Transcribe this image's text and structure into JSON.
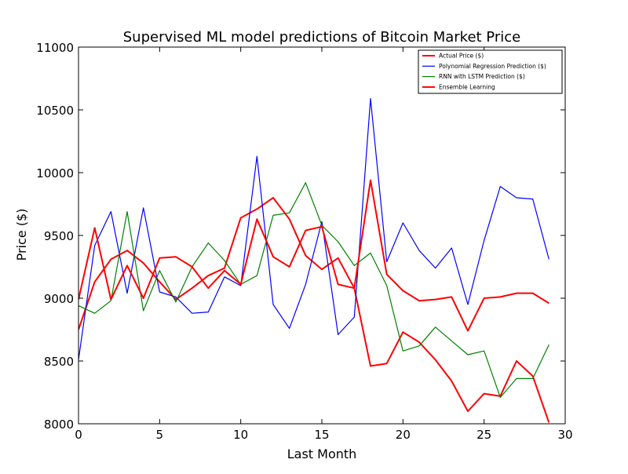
{
  "chart_data": {
    "type": "line",
    "title": "Supervised ML model predictions of Bitcoin Market Price",
    "xlabel": "Last Month",
    "ylabel": "Price ($)",
    "xlim": [
      0,
      30
    ],
    "ylim": [
      8000,
      11000
    ],
    "xticks": [
      0,
      5,
      10,
      15,
      20,
      25,
      30
    ],
    "yticks": [
      8000,
      8500,
      9000,
      9500,
      10000,
      10500,
      11000
    ],
    "grid": false,
    "legend_position": "top-right",
    "x": [
      0,
      1,
      2,
      3,
      4,
      5,
      6,
      7,
      8,
      9,
      10,
      11,
      12,
      13,
      14,
      15,
      16,
      17,
      18,
      19,
      20,
      21,
      22,
      23,
      24,
      25,
      26,
      27,
      28,
      29
    ],
    "series": [
      {
        "name": "Actual Price ($)",
        "color": "#ff0000",
        "values": [
          8750,
          9130,
          9310,
          9380,
          9280,
          9130,
          8990,
          9080,
          9180,
          9240,
          9640,
          9710,
          9800,
          9630,
          9340,
          9230,
          9320,
          9080,
          8460,
          8480,
          8730,
          8650,
          8510,
          8340,
          8100,
          8240,
          8220,
          8500,
          8380,
          8010
        ]
      },
      {
        "name": "Polynomial Regression Prediction ($)",
        "color": "#0000ff",
        "values": [
          8510,
          9420,
          9690,
          9040,
          9720,
          9050,
          9010,
          8880,
          8890,
          9170,
          9100,
          10130,
          8950,
          8760,
          9110,
          9610,
          8710,
          8850,
          10590,
          9290,
          9600,
          9380,
          9240,
          9400,
          8950,
          9460,
          9890,
          9800,
          9790,
          9310
        ]
      },
      {
        "name": "RNN with LSTM Prediction ($)",
        "color": "#008000",
        "values": [
          8940,
          8880,
          8980,
          9690,
          8900,
          9220,
          8970,
          9250,
          9440,
          9300,
          9110,
          9180,
          9660,
          9680,
          9920,
          9580,
          9450,
          9260,
          9360,
          9100,
          8580,
          8620,
          8770,
          8660,
          8550,
          8580,
          8210,
          8360,
          8360,
          8630
        ]
      },
      {
        "name": "Ensemble Learning",
        "color": "#ff0000",
        "values": [
          8990,
          9560,
          8990,
          9260,
          9000,
          9320,
          9330,
          9250,
          9080,
          9220,
          9110,
          9630,
          9330,
          9250,
          9540,
          9570,
          9110,
          9080,
          9940,
          9190,
          9060,
          8980,
          8990,
          9010,
          8740,
          9000,
          9010,
          9040,
          9040,
          8960
        ]
      }
    ]
  }
}
